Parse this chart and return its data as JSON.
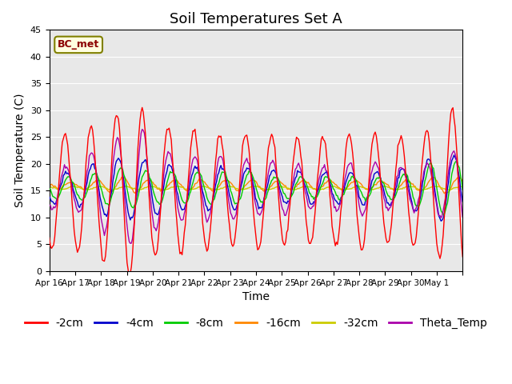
{
  "title": "Soil Temperatures Set A",
  "xlabel": "Time",
  "ylabel": "Soil Temperature (C)",
  "annotation": "BC_met",
  "ylim": [
    0,
    45
  ],
  "yticks": [
    0,
    5,
    10,
    15,
    20,
    25,
    30,
    35,
    40,
    45
  ],
  "x_tick_positions": [
    0,
    1,
    2,
    3,
    4,
    5,
    6,
    7,
    8,
    9,
    10,
    11,
    12,
    13,
    14,
    15,
    16
  ],
  "x_labels": [
    "Apr 16",
    "Apr 17",
    "Apr 18",
    "Apr 19",
    "Apr 20",
    "Apr 21",
    "Apr 22",
    "Apr 23",
    "Apr 24",
    "Apr 25",
    "Apr 26",
    "Apr 27",
    "Apr 28",
    "Apr 29",
    "Apr 30",
    "May 1",
    ""
  ],
  "legend_labels": [
    "-2cm",
    "-4cm",
    "-8cm",
    "-16cm",
    "-32cm",
    "Theta_Temp"
  ],
  "colors": {
    "-2cm": "#ff0000",
    "-4cm": "#0000cc",
    "-8cm": "#00cc00",
    "-16cm": "#ff8800",
    "-32cm": "#cccc00",
    "Theta_Temp": "#aa00aa"
  },
  "background_color": "#e8e8e8",
  "title_fontsize": 13,
  "axis_fontsize": 10,
  "legend_fontsize": 10
}
